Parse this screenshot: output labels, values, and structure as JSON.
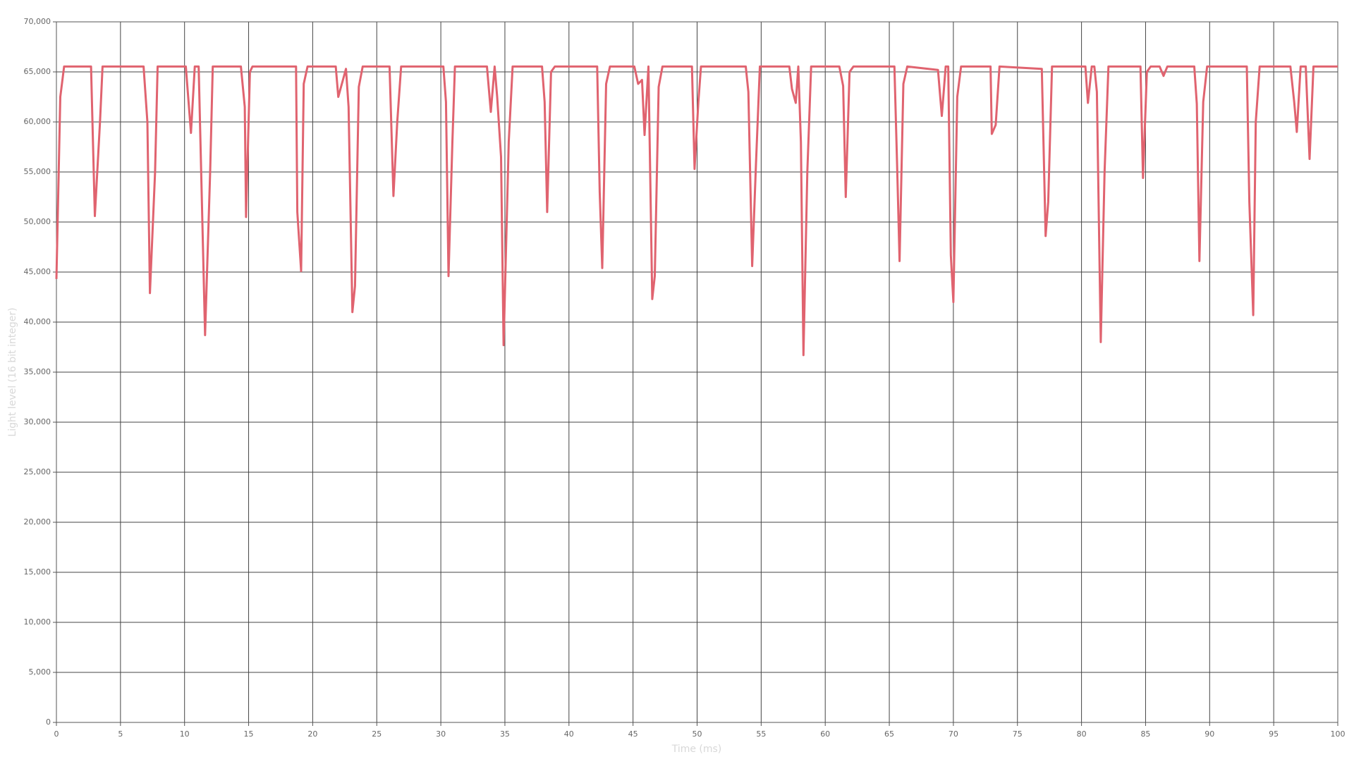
{
  "chart_data": {
    "type": "line",
    "x_label": "Time (ms)",
    "y_label": "Light level (16 bit integer)",
    "x": [
      0,
      0.3,
      0.6,
      2.7,
      3.0,
      3.4,
      3.6,
      6.8,
      7.1,
      7.3,
      7.7,
      7.9,
      10.1,
      10.5,
      10.8,
      11.1,
      11.6,
      12.0,
      12.2,
      14.4,
      14.7,
      14.8,
      15.1,
      15.3,
      18.7,
      18.8,
      19.1,
      19.3,
      19.6,
      21.8,
      22.0,
      22.6,
      22.8,
      23.1,
      23.3,
      23.6,
      23.9,
      26.0,
      26.3,
      26.6,
      26.9,
      30.2,
      30.4,
      30.6,
      30.9,
      31.1,
      33.6,
      33.9,
      34.2,
      34.4,
      34.7,
      34.9,
      35.3,
      35.6,
      37.9,
      38.1,
      38.3,
      38.6,
      38.9,
      42.2,
      42.4,
      42.6,
      42.9,
      43.2,
      45.1,
      45.4,
      45.7,
      45.9,
      46.2,
      46.5,
      46.7,
      47.0,
      47.3,
      49.6,
      49.8,
      50.1,
      50.3,
      53.8,
      54.0,
      54.3,
      54.6,
      54.9,
      57.2,
      57.4,
      57.7,
      57.9,
      58.1,
      58.3,
      58.6,
      58.9,
      61.1,
      61.4,
      61.6,
      61.9,
      62.2,
      65.4,
      65.6,
      65.8,
      66.1,
      66.4,
      68.8,
      69.1,
      69.4,
      69.6,
      69.8,
      70.0,
      70.3,
      70.6,
      72.9,
      73.0,
      73.3,
      73.6,
      76.9,
      77.2,
      77.4,
      77.7,
      80.3,
      80.5,
      80.8,
      81.0,
      81.2,
      81.5,
      81.8,
      82.1,
      84.6,
      84.8,
      85.1,
      85.4,
      86.1,
      86.4,
      86.7,
      88.8,
      89.0,
      89.2,
      89.5,
      89.8,
      92.9,
      93.1,
      93.4,
      93.6,
      93.9,
      96.3,
      96.6,
      96.8,
      97.1,
      97.5,
      97.8,
      98.1,
      100
    ],
    "series": [
      {
        "color": "#e0636f",
        "values": [
          44300,
          62500,
          65535,
          65535,
          50600,
          60000,
          65535,
          65535,
          60000,
          42900,
          55000,
          65535,
          65535,
          58900,
          65535,
          65535,
          38700,
          55000,
          65535,
          65535,
          61500,
          50500,
          65000,
          65535,
          65535,
          51000,
          45100,
          63800,
          65535,
          65535,
          62500,
          65300,
          61500,
          41000,
          43600,
          63500,
          65535,
          65535,
          52600,
          60000,
          65535,
          65535,
          62000,
          44600,
          58000,
          65535,
          65535,
          61000,
          65535,
          62500,
          56500,
          37700,
          58000,
          65535,
          65535,
          62000,
          51000,
          65000,
          65535,
          65535,
          53000,
          45400,
          63800,
          65535,
          65535,
          63800,
          64200,
          58700,
          65535,
          42300,
          44600,
          63500,
          65535,
          65535,
          55300,
          62000,
          65535,
          65535,
          63000,
          45600,
          56000,
          65535,
          65535,
          63300,
          61900,
          65535,
          58000,
          36700,
          55000,
          65535,
          65535,
          63600,
          52500,
          65000,
          65535,
          65535,
          56000,
          46100,
          63800,
          65535,
          65200,
          60600,
          65535,
          65535,
          46700,
          42000,
          62500,
          65535,
          65535,
          58800,
          59700,
          65535,
          65300,
          48600,
          52000,
          65535,
          65535,
          61900,
          65535,
          65535,
          63000,
          38000,
          55000,
          65535,
          65535,
          54400,
          65000,
          65535,
          65535,
          64600,
          65535,
          65535,
          61800,
          46100,
          62000,
          65535,
          65535,
          52000,
          40700,
          60000,
          65535,
          65535,
          62000,
          59000,
          65535,
          65535,
          56300,
          65535,
          65535
        ]
      }
    ],
    "xlim": [
      0,
      100
    ],
    "ylim": [
      0,
      70000
    ],
    "xticks": [
      0,
      5,
      10,
      15,
      20,
      25,
      30,
      35,
      40,
      45,
      50,
      55,
      60,
      65,
      70,
      75,
      80,
      85,
      90,
      95,
      100
    ],
    "yticks": [
      0,
      {
        "value": 5000,
        "label": "5,000"
      },
      {
        "value": 10000,
        "label": "10,000"
      },
      {
        "value": 15000,
        "label": "15,000"
      },
      {
        "value": 20000,
        "label": "20,000"
      },
      {
        "value": 25000,
        "label": "25,000"
      },
      {
        "value": 30000,
        "label": "30,000"
      },
      {
        "value": 35000,
        "label": "35,000"
      },
      {
        "value": 40000,
        "label": "40,000"
      },
      {
        "value": 45000,
        "label": "45,000"
      },
      {
        "value": 50000,
        "label": "50,000"
      },
      {
        "value": 55000,
        "label": "55,000"
      },
      {
        "value": 60000,
        "label": "60,000"
      },
      {
        "value": 65000,
        "label": "65,000"
      },
      {
        "value": 70000,
        "label": "70,000"
      }
    ],
    "grid": true
  }
}
